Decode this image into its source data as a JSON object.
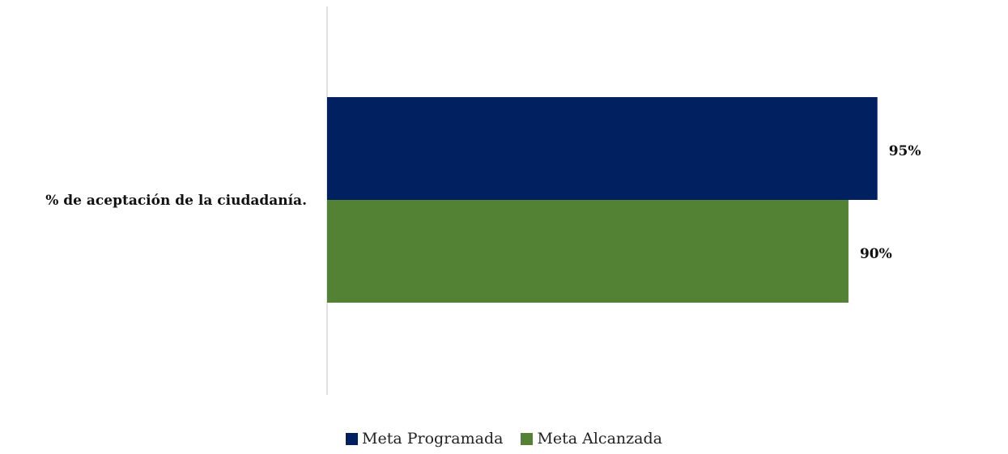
{
  "chart_data": {
    "type": "bar",
    "orientation": "horizontal",
    "categories": [
      "% de aceptación de la ciudadanía."
    ],
    "series": [
      {
        "name": "Meta Programada",
        "values": [
          95
        ],
        "color": "#002060",
        "label": "95%"
      },
      {
        "name": "Meta Alcanzada",
        "values": [
          90
        ],
        "color": "#548235",
        "label": "90%"
      }
    ],
    "xlim": [
      0,
      100
    ],
    "unit": "%",
    "grid": false,
    "legend": "bottom"
  }
}
